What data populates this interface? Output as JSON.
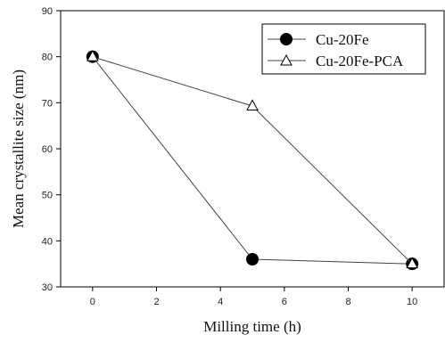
{
  "chart_data": {
    "type": "line",
    "xlabel": "Milling time (h)",
    "ylabel": "Mean crystallite size (nm)",
    "xlim": [
      -1,
      11
    ],
    "ylim": [
      30,
      90
    ],
    "xticks": [
      0,
      2,
      4,
      6,
      8,
      10
    ],
    "yticks": [
      30,
      40,
      50,
      60,
      70,
      80,
      90
    ],
    "xtick_labels": [
      "0",
      "2",
      "4",
      "6",
      "8",
      "10"
    ],
    "ytick_labels": [
      "30",
      "40",
      "50",
      "60",
      "70",
      "80",
      "90"
    ],
    "grid": false,
    "legend_position": "top-right",
    "series": [
      {
        "name": "Cu-20Fe",
        "marker": "filled-circle",
        "x": [
          0,
          5,
          10
        ],
        "y": [
          80,
          36,
          35
        ]
      },
      {
        "name": "Cu-20Fe-PCA",
        "marker": "open-triangle",
        "x": [
          0,
          5,
          10
        ],
        "y": [
          80,
          69.3,
          35
        ]
      }
    ],
    "colors": {
      "line": "#444444",
      "marker_fill": "#000000",
      "axis": "#000000"
    }
  }
}
